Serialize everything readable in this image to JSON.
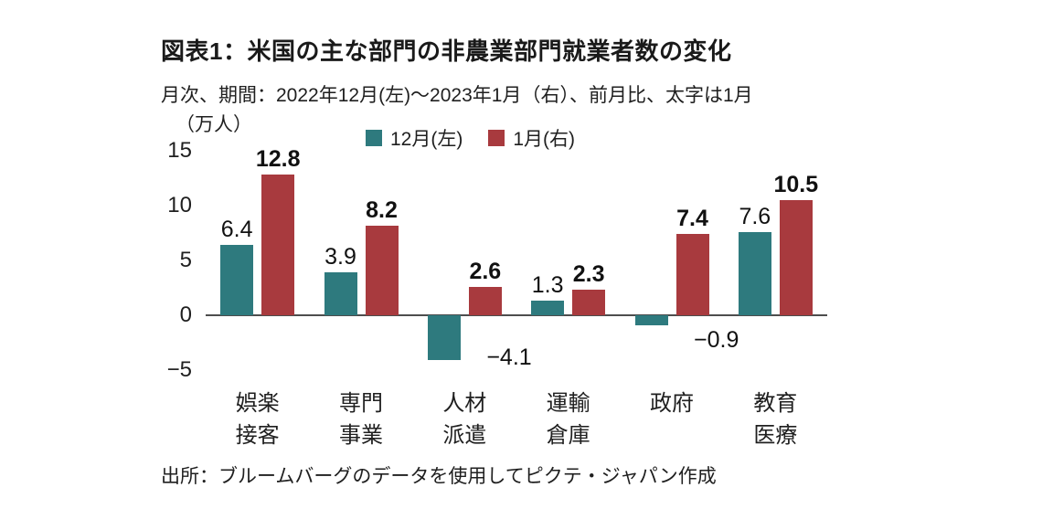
{
  "chart_data": {
    "type": "bar",
    "title": "図表1：米国の主な部門の非農業部門就業者数の変化",
    "subtitle": "月次、期間：2022年12月(左)～2023年1月（右）、前月比、太字は1月",
    "unit_label": "（万人）",
    "source": "出所：ブルームバーグのデータを使用してピクテ・ジャパン作成",
    "categories": [
      [
        "娯楽",
        "接客"
      ],
      [
        "専門",
        "事業"
      ],
      [
        "人材",
        "派遣"
      ],
      [
        "運輸",
        "倉庫"
      ],
      [
        "政府"
      ],
      [
        "教育",
        "医療"
      ]
    ],
    "series": [
      {
        "name": "12月(左)",
        "color": "#2e7a7e",
        "values": [
          6.4,
          3.9,
          -4.1,
          1.3,
          -0.9,
          7.6
        ]
      },
      {
        "name": "1月(右)",
        "color": "#a83a3e",
        "values": [
          12.8,
          8.2,
          2.6,
          2.3,
          7.4,
          10.5
        ]
      }
    ],
    "xlabel": "",
    "ylabel": "万人",
    "ylim": [
      -5,
      15
    ],
    "yticks": [
      15,
      10,
      5,
      0,
      -5
    ],
    "grid": false,
    "legend_position": "top",
    "value_labels": "on, January series bold"
  }
}
